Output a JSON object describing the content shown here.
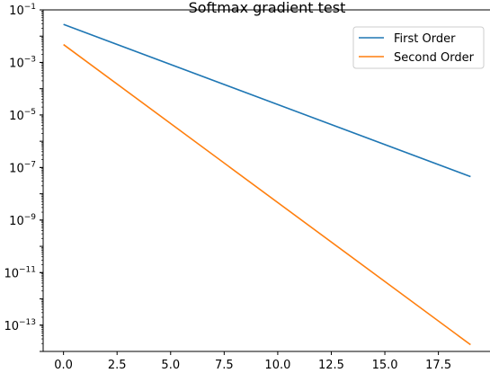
{
  "chart_data": {
    "type": "line",
    "title": "Softmax gradient test",
    "xlabel": "",
    "ylabel": "",
    "yscale": "log",
    "xlim": [
      -0.95,
      19.95
    ],
    "ylim": [
      1e-14,
      0.1
    ],
    "x_ticks": [
      {
        "value": 0,
        "label": "0.0"
      },
      {
        "value": 2.5,
        "label": "2.5"
      },
      {
        "value": 5,
        "label": "5.0"
      },
      {
        "value": 7.5,
        "label": "7.5"
      },
      {
        "value": 10,
        "label": "10.0"
      },
      {
        "value": 12.5,
        "label": "12.5"
      },
      {
        "value": 15,
        "label": "15.0"
      },
      {
        "value": 17.5,
        "label": "17.5"
      }
    ],
    "y_ticks": [
      {
        "value": 0.1,
        "base": "10",
        "exp": "−1"
      },
      {
        "value": 0.001,
        "base": "10",
        "exp": "−3"
      },
      {
        "value": 1e-05,
        "base": "10",
        "exp": "−5"
      },
      {
        "value": 1e-07,
        "base": "10",
        "exp": "−7"
      },
      {
        "value": 1e-09,
        "base": "10",
        "exp": "−9"
      },
      {
        "value": 1e-11,
        "base": "10",
        "exp": "−11"
      },
      {
        "value": 1e-13,
        "base": "10",
        "exp": "−13"
      }
    ],
    "grid": false,
    "legend_position": "top-right",
    "series": [
      {
        "name": "First Order",
        "color": "#1f77b4",
        "x_start": 0,
        "x_end": 19,
        "y_start": 0.028,
        "y_end": 4.5e-08
      },
      {
        "name": "Second Order",
        "color": "#ff7f0e",
        "x_start": 0,
        "x_end": 19,
        "y_start": 0.0048,
        "y_end": 1.8e-14
      }
    ]
  }
}
